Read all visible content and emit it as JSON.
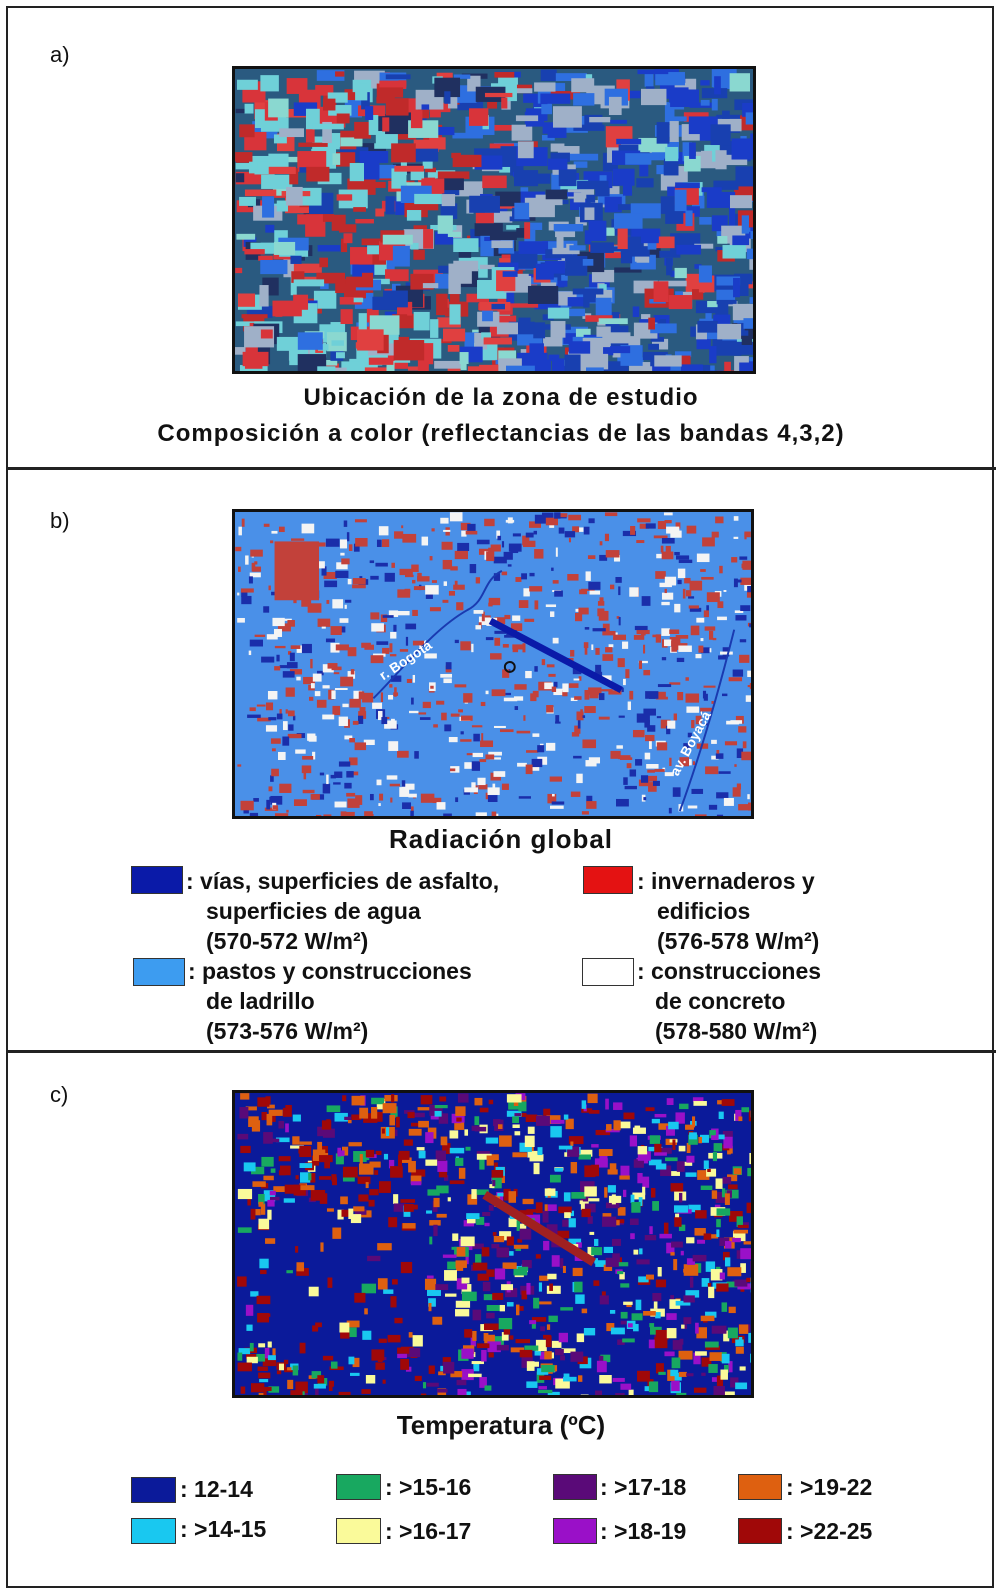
{
  "panel_a": {
    "label": "a)",
    "caption_line1": "Ubicación de la zona de estudio",
    "caption_line2": "Composición a color (reflectancias de las bandas 4,3,2)"
  },
  "panel_b": {
    "label": "b)",
    "title": "Radiación global",
    "map_labels": {
      "river": "r. Bogotá",
      "avenue": "av. Boyacá"
    },
    "legend": [
      {
        "color": "#0a1aa8",
        "text1": ": vías, superficies de asfalto,",
        "text2": "superficies de agua",
        "range": "(570-572 W/m²)"
      },
      {
        "color": "#e41212",
        "text1": ": invernaderos y",
        "text2": "edificios",
        "range": "(576-578 W/m²)"
      },
      {
        "color": "#3d9cf0",
        "text1": ": pastos y construcciones",
        "text2": "de ladrillo",
        "range": "(573-576 W/m²)"
      },
      {
        "color": "#ffffff",
        "text1": ": construcciones",
        "text2": "de concreto",
        "range": "(578-580 W/m²)"
      }
    ]
  },
  "panel_c": {
    "label": "c)",
    "title": "Temperatura (ºC)",
    "legend": [
      {
        "color": "#0b1a9a",
        "text": ":  12-14"
      },
      {
        "color": "#19c8f0",
        "text": ": >14-15"
      },
      {
        "color": "#18a860",
        "text": ": >15-16"
      },
      {
        "color": "#fafa9a",
        "text": ": >16-17"
      },
      {
        "color": "#5a0a78",
        "text": ": >17-18"
      },
      {
        "color": "#9a10c8",
        "text": ": >18-19"
      },
      {
        "color": "#de6010",
        "text": ": >19-22"
      },
      {
        "color": "#a00808",
        "text": ": >22-25"
      }
    ]
  }
}
